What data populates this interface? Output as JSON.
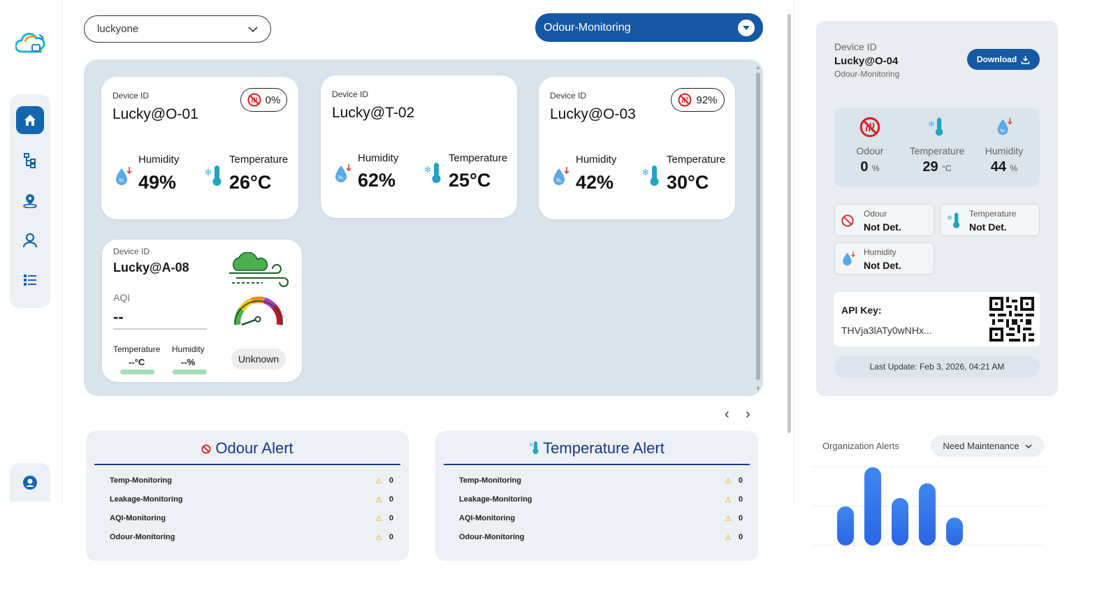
{
  "org_select": {
    "value": "luckyone"
  },
  "monitoring_select": {
    "value": "Odour-Monitoring"
  },
  "cards": [
    {
      "device_id_label": "Device ID",
      "name": "Lucky@O-01",
      "odour": "0%",
      "humidity_label": "Humidity",
      "humidity": "49%",
      "temperature_label": "Temperature",
      "temperature": "26°C"
    },
    {
      "device_id_label": "Device ID",
      "name": "Lucky@T-02",
      "humidity_label": "Humidity",
      "humidity": "62%",
      "temperature_label": "Temperature",
      "temperature": "25°C"
    },
    {
      "device_id_label": "Device ID",
      "name": "Lucky@O-03",
      "odour": "92%",
      "humidity_label": "Humidity",
      "humidity": "42%",
      "temperature_label": "Temperature",
      "temperature": "30°C"
    }
  ],
  "aqi_card": {
    "device_id_label": "Device ID",
    "name": "Lucky@A-08",
    "aqi_label": "AQI",
    "aqi_value": "--",
    "temperature_label": "Temperature",
    "temperature": "--°C",
    "humidity_label": "Humidity",
    "humidity": "--%",
    "status": "Unknown"
  },
  "alerts": [
    {
      "title": "Odour Alert",
      "rows": [
        {
          "label": "Temp-Monitoring",
          "count": "0"
        },
        {
          "label": "Leakage-Monitoring",
          "count": "0"
        },
        {
          "label": "AQI-Monitoring",
          "count": "0"
        },
        {
          "label": "Odour-Monitoring",
          "count": "0"
        }
      ]
    },
    {
      "title": "Temperature Alert",
      "rows": [
        {
          "label": "Temp-Monitoring",
          "count": "0"
        },
        {
          "label": "Leakage-Monitoring",
          "count": "0"
        },
        {
          "label": "AQI-Monitoring",
          "count": "0"
        },
        {
          "label": "Odour-Monitoring",
          "count": "0"
        }
      ]
    }
  ],
  "detail": {
    "device_id_label": "Device ID",
    "device_id": "Lucky@O-04",
    "type": "Odour-Monitoring",
    "download_label": "Download",
    "stats": [
      {
        "label": "Odour",
        "value": "0",
        "unit": "%"
      },
      {
        "label": "Temperature",
        "value": "29",
        "unit": "°C"
      },
      {
        "label": "Humidity",
        "value": "44",
        "unit": "%"
      }
    ],
    "tiles": [
      {
        "label": "Odour",
        "value": "Not Det."
      },
      {
        "label": "Temperature",
        "value": "Not Det."
      },
      {
        "label": "Humidity",
        "value": "Not Det."
      }
    ],
    "api_key_label": "API Key:",
    "api_key": "THVja3lATy0wNHx...",
    "last_update": "Last Update: Feb 3, 2026, 04:21 AM"
  },
  "org_alerts": {
    "title": "Organization Alerts",
    "filter": "Need Maintenance",
    "chart_data": {
      "type": "bar",
      "values": [
        56,
        112,
        68,
        89,
        40
      ]
    }
  },
  "colors": {
    "primary": "#1558a6",
    "panel": "#d9e3ec",
    "bar": "#2b66e6",
    "alert_title": "#16388a"
  }
}
